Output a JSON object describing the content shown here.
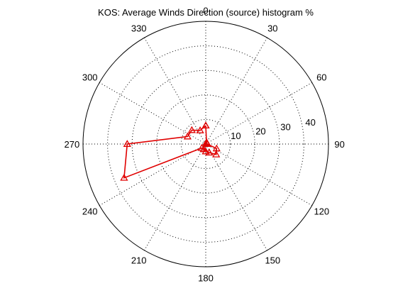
{
  "chart_data": {
    "type": "polar-line",
    "title": "KOS: Average Winds Direction (source) histogram %",
    "theta_unit": "degrees",
    "theta_zero": "top",
    "theta_direction": "clockwise",
    "theta_ticks": [
      0,
      30,
      60,
      90,
      120,
      150,
      180,
      210,
      240,
      270,
      300,
      330
    ],
    "theta_tick_labels": [
      "0",
      "30",
      "60",
      "90",
      "120",
      "150",
      "180",
      "210",
      "240",
      "270",
      "300",
      "330"
    ],
    "r_ticks": [
      10,
      20,
      30,
      40
    ],
    "r_tick_labels": [
      "10",
      "20",
      "30",
      "40"
    ],
    "rlim": [
      0,
      50
    ],
    "grid": true,
    "colors": {
      "series": "#e00000",
      "grid": "#000000",
      "background": "#ffffff"
    },
    "marker": "triangle",
    "series": [
      {
        "theta": [
          0,
          22.5,
          45,
          67.5,
          90,
          112.5,
          135,
          157.5,
          180,
          202.5,
          225,
          247.5,
          270,
          292.5,
          315,
          337.5,
          0
        ],
        "r": [
          7.5,
          0.8,
          0.6,
          0.6,
          0.6,
          4.8,
          6.0,
          3.8,
          3.0,
          2.3,
          2.3,
          36.0,
          32.0,
          8.0,
          8.0,
          6.0,
          7.5
        ]
      }
    ]
  }
}
